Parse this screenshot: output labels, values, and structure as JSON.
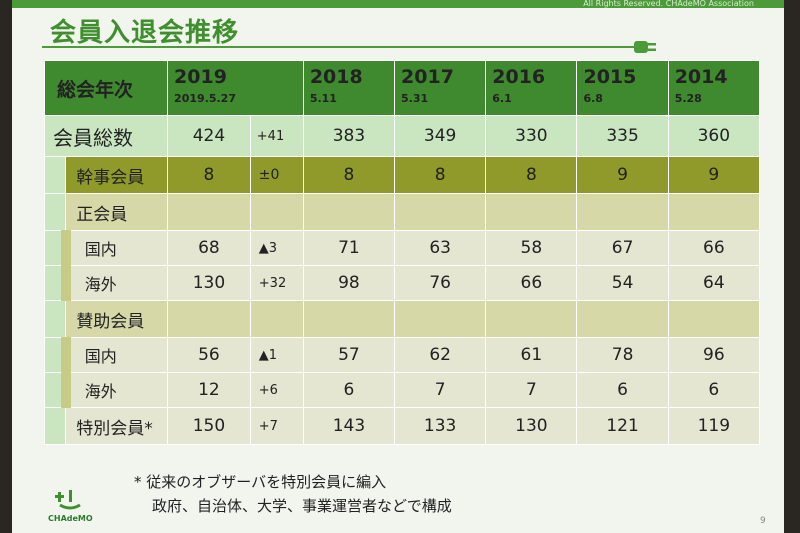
{
  "slide": {
    "title": "会員入退会推移",
    "copyright": "All Rights Reserved. CHAdeMO Association",
    "page_number": "9",
    "logo_text": "CHAdeMO"
  },
  "header": {
    "label": "総会年次",
    "years": [
      {
        "year": "2019",
        "date": "2019.5.27"
      },
      {
        "year": "2018",
        "date": "5.11"
      },
      {
        "year": "2017",
        "date": "5.31"
      },
      {
        "year": "2016",
        "date": "6.1"
      },
      {
        "year": "2015",
        "date": "6.8"
      },
      {
        "year": "2014",
        "date": "5.28"
      }
    ]
  },
  "rows": {
    "total": {
      "label": "会員総数",
      "v2019": "424",
      "diff": "+41",
      "v2018": "383",
      "v2017": "349",
      "v2016": "330",
      "v2015": "335",
      "v2014": "360"
    },
    "kanji": {
      "label": "幹事会員",
      "v2019": "8",
      "diff": "±0",
      "v2018": "8",
      "v2017": "8",
      "v2016": "8",
      "v2015": "9",
      "v2014": "9"
    },
    "regular": {
      "label": "正会員"
    },
    "regular_domestic": {
      "label": "国内",
      "v2019": "68",
      "diff": "▲3",
      "v2018": "71",
      "v2017": "63",
      "v2016": "58",
      "v2015": "67",
      "v2014": "66"
    },
    "regular_overseas": {
      "label": "海外",
      "v2019": "130",
      "diff": "+32",
      "v2018": "98",
      "v2017": "76",
      "v2016": "66",
      "v2015": "54",
      "v2014": "64"
    },
    "support": {
      "label": "賛助会員"
    },
    "support_domestic": {
      "label": "国内",
      "v2019": "56",
      "diff": "▲1",
      "v2018": "57",
      "v2017": "62",
      "v2016": "61",
      "v2015": "78",
      "v2014": "96"
    },
    "support_overseas": {
      "label": "海外",
      "v2019": "12",
      "diff": "+6",
      "v2018": "6",
      "v2017": "7",
      "v2016": "7",
      "v2015": "6",
      "v2014": "6"
    },
    "special": {
      "label": "特別会員*",
      "v2019": "150",
      "diff": "+7",
      "v2018": "143",
      "v2017": "133",
      "v2016": "130",
      "v2015": "121",
      "v2014": "119"
    }
  },
  "note": {
    "line1": "* 従来のオブザーバを特別会員に編入",
    "line2": "政府、自治体、大学、事業運営者などで構成"
  },
  "colors": {
    "header_green": "#3f8a2f",
    "total_light_green": "#c9e6c1",
    "kanji_olive": "#8f9a2a",
    "section_khaki": "#d6d8a8"
  }
}
